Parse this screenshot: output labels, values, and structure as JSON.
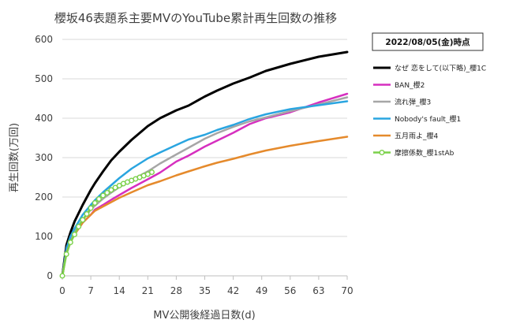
{
  "chart_data": {
    "type": "line",
    "title": "櫻坂46表題系主要MVのYouTube累計再生回数の推移",
    "annotation": "2022/08/05(金)時点",
    "xlabel": "MV公開後経過日数(d)",
    "ylabel": "再生回数(万回)",
    "xlim": [
      0,
      70
    ],
    "ylim": [
      0,
      600
    ],
    "x_ticks": [
      0,
      7,
      14,
      21,
      28,
      35,
      42,
      49,
      56,
      63,
      70
    ],
    "y_ticks": [
      0,
      100,
      200,
      300,
      400,
      500,
      600
    ],
    "grid": true,
    "legend_position": "right",
    "series": [
      {
        "name": "なぜ 恋をして(以下略)_櫻1C",
        "color": "#000000",
        "marker": false,
        "x": [
          0,
          1,
          2,
          3,
          5,
          7,
          8,
          10,
          12,
          14,
          17,
          21,
          24,
          28,
          31,
          35,
          38,
          42,
          46,
          50,
          56,
          63,
          70
        ],
        "y": [
          0,
          78,
          110,
          138,
          180,
          218,
          235,
          265,
          293,
          315,
          345,
          380,
          400,
          420,
          432,
          455,
          470,
          488,
          503,
          520,
          538,
          556,
          568
        ]
      },
      {
        "name": "BAN_櫻2",
        "color": "#d62fbf",
        "marker": false,
        "x": [
          0,
          1,
          2,
          3,
          5,
          7,
          8,
          10,
          12,
          14,
          17,
          21,
          24,
          28,
          31,
          35,
          38,
          42,
          46,
          50,
          56,
          63,
          70
        ],
        "y": [
          0,
          60,
          88,
          105,
          135,
          155,
          168,
          180,
          193,
          205,
          223,
          245,
          262,
          290,
          305,
          328,
          343,
          363,
          385,
          400,
          415,
          440,
          462
        ]
      },
      {
        "name": "流れ弾_櫻3",
        "color": "#a6a6a6",
        "marker": false,
        "x": [
          0,
          1,
          2,
          3,
          5,
          7,
          8,
          10,
          12,
          14,
          17,
          21,
          24,
          28,
          31,
          35,
          38,
          42,
          46,
          50,
          56,
          63,
          70
        ],
        "y": [
          0,
          65,
          92,
          112,
          142,
          168,
          178,
          196,
          211,
          225,
          243,
          265,
          285,
          308,
          325,
          348,
          362,
          378,
          392,
          402,
          418,
          435,
          453
        ]
      },
      {
        "name": "Nobody's fault_櫻1",
        "color": "#2aa5e0",
        "marker": false,
        "x": [
          0,
          1,
          2,
          3,
          5,
          7,
          8,
          10,
          12,
          14,
          17,
          21,
          24,
          28,
          31,
          35,
          38,
          42,
          46,
          50,
          56,
          63,
          70
        ],
        "y": [
          0,
          70,
          100,
          120,
          155,
          180,
          192,
          212,
          230,
          248,
          272,
          298,
          313,
          332,
          346,
          358,
          370,
          383,
          398,
          410,
          423,
          433,
          443
        ]
      },
      {
        "name": "五月雨よ_櫻4",
        "color": "#e58a2c",
        "marker": false,
        "x": [
          0,
          1,
          2,
          3,
          5,
          7,
          8,
          10,
          12,
          14,
          17,
          21,
          24,
          28,
          31,
          35,
          38,
          42,
          46,
          50,
          56,
          63,
          70
        ],
        "y": [
          0,
          58,
          85,
          105,
          135,
          155,
          165,
          176,
          187,
          198,
          212,
          230,
          240,
          255,
          265,
          278,
          287,
          297,
          308,
          318,
          330,
          342,
          353
        ]
      },
      {
        "name": "摩擦係数_櫻1stAb",
        "color": "#7bd14a",
        "marker": true,
        "x": [
          0,
          1,
          2,
          3,
          4,
          5,
          6,
          7,
          8,
          9,
          10,
          11,
          12,
          13,
          14,
          15,
          16,
          17,
          18,
          19,
          20,
          21,
          22
        ],
        "y": [
          0,
          55,
          85,
          105,
          125,
          142,
          157,
          172,
          185,
          195,
          204,
          211,
          218,
          224,
          229,
          234,
          238,
          242,
          246,
          250,
          254,
          258,
          263
        ]
      }
    ]
  }
}
